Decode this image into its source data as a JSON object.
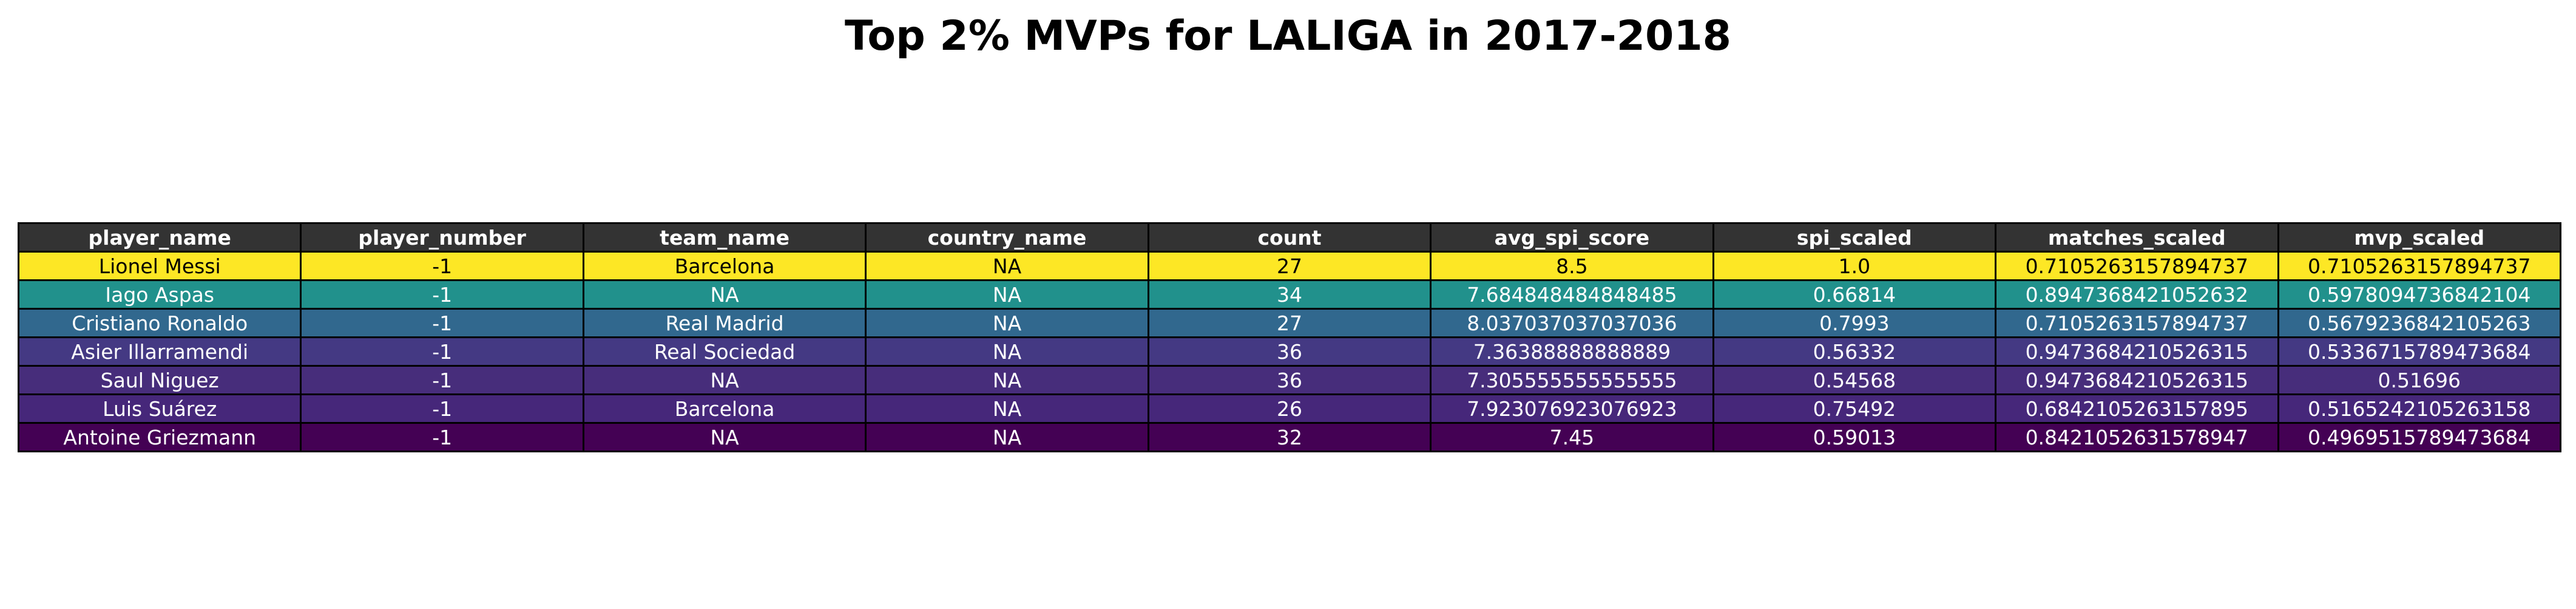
{
  "chart_data": {
    "type": "table",
    "title": "Top 2% MVPs for LALIGA in 2017-2018",
    "columns": [
      "player_name",
      "player_number",
      "team_name",
      "country_name",
      "count",
      "avg_spi_score",
      "spi_scaled",
      "matches_scaled",
      "mvp_scaled"
    ],
    "rows": [
      [
        "Lionel Messi",
        "-1",
        "Barcelona",
        "NA",
        "27",
        "8.5",
        "1.0",
        "0.7105263157894737",
        "0.7105263157894737"
      ],
      [
        "Iago Aspas",
        "-1",
        "NA",
        "NA",
        "34",
        "7.684848484848485",
        "0.66814",
        "0.8947368421052632",
        "0.5978094736842104"
      ],
      [
        "Cristiano Ronaldo",
        "-1",
        "Real Madrid",
        "NA",
        "27",
        "8.037037037037036",
        "0.7993",
        "0.7105263157894737",
        "0.5679236842105263"
      ],
      [
        "Asier Illarramendi",
        "-1",
        "Real Sociedad",
        "NA",
        "36",
        "7.36388888888889",
        "0.56332",
        "0.9473684210526315",
        "0.5336715789473684"
      ],
      [
        "Saul Niguez",
        "-1",
        "NA",
        "NA",
        "36",
        "7.305555555555555",
        "0.54568",
        "0.9473684210526315",
        "0.51696"
      ],
      [
        "Luis Suárez",
        "-1",
        "Barcelona",
        "NA",
        "26",
        "7.923076923076923",
        "0.75492",
        "0.6842105263157895",
        "0.5165242105263158"
      ],
      [
        "Antoine Griezmann",
        "-1",
        "NA",
        "NA",
        "32",
        "7.45",
        "0.59013",
        "0.8421052631578947",
        "0.4969515789473684"
      ]
    ],
    "row_colors": [
      "#fde725",
      "#21918c",
      "#31688e",
      "#443983",
      "#472d7b",
      "#46277a",
      "#440154"
    ],
    "row_text_colors": [
      "#000000",
      "#ffffff",
      "#ffffff",
      "#ffffff",
      "#ffffff",
      "#ffffff",
      "#ffffff"
    ],
    "header_color": "#333333",
    "header_text_color": "#ffffff"
  }
}
